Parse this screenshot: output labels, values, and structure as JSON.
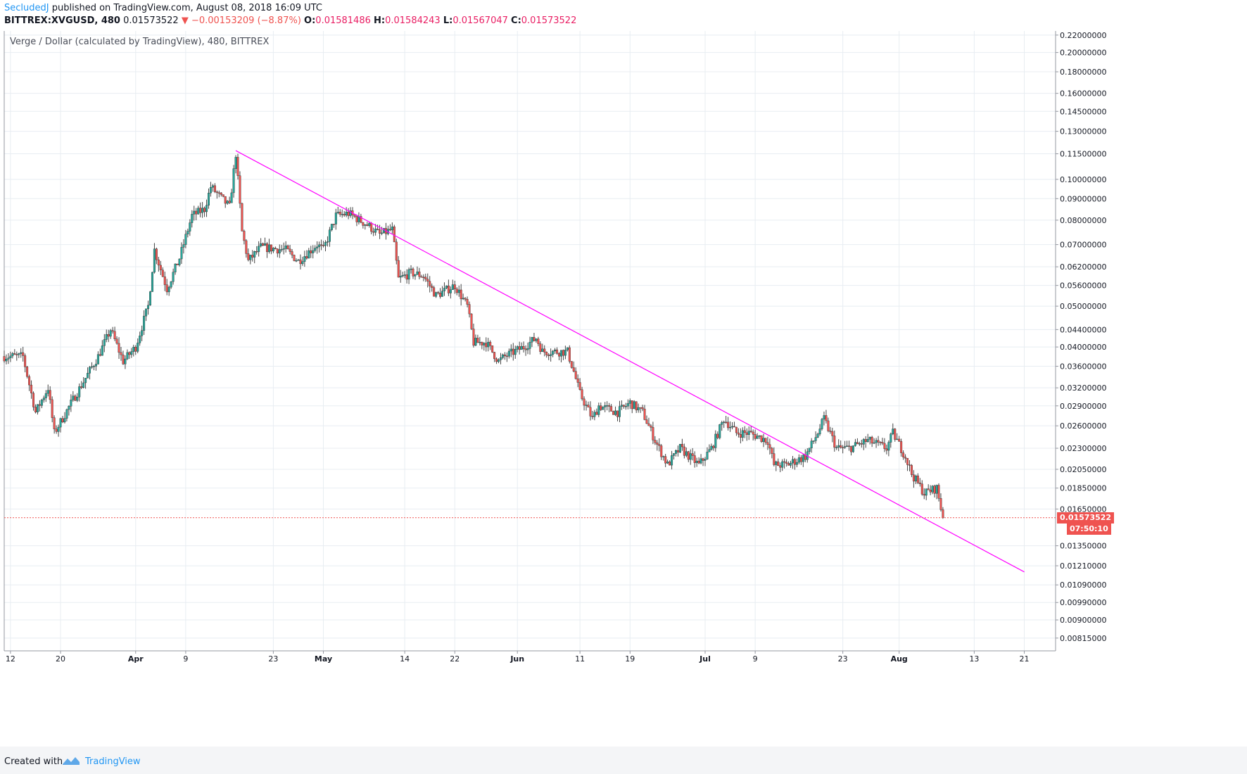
{
  "header": {
    "author": "SecludedJ",
    "publish_text": " published on TradingView.com, August 08, 2018 16:09 UTC",
    "symbol": "BITTREX:XVGUSD, 480",
    "last_price": "0.01573522",
    "change": "−0.00153209 (−8.87%)",
    "open_label": "O:",
    "open": "0.01581486",
    "high_label": "H:",
    "high": "0.01584243",
    "low_label": "L:",
    "low": "0.01567047",
    "close_label": "C:",
    "close": "0.01573522"
  },
  "chart_title": "Verge / Dollar (calculated by TradingView), 480, BITTREX",
  "price_tag": "0.01573522",
  "countdown_tag": "07:50:10",
  "footer": {
    "created": "Created with",
    "brand": "TradingView"
  },
  "colors": {
    "up": "#26a69a",
    "down": "#ef5350",
    "trendline": "#ff00ff",
    "grid": "#e8edf2",
    "price_line": "#ef5350",
    "brand": "#2196f3"
  },
  "chart_data": {
    "type": "candlestick",
    "y_scale": "log",
    "ylim": [
      0.0076,
      0.225
    ],
    "y_ticks": [
      "0.22000000",
      "0.20000000",
      "0.18000000",
      "0.16000000",
      "0.14500000",
      "0.13000000",
      "0.11500000",
      "0.10000000",
      "0.09000000",
      "0.08000000",
      "0.07000000",
      "0.06200000",
      "0.05600000",
      "0.05000000",
      "0.04400000",
      "0.04000000",
      "0.03600000",
      "0.03200000",
      "0.02900000",
      "0.02600000",
      "0.02300000",
      "0.02050000",
      "0.01850000",
      "0.01650000",
      "0.01350000",
      "0.01210000",
      "0.01090000",
      "0.00990000",
      "0.00900000",
      "0.00815000"
    ],
    "x_ticks": [
      "12",
      "20",
      "Apr",
      "9",
      "23",
      "May",
      "14",
      "22",
      "Jun",
      "11",
      "19",
      "Jul",
      "9",
      "23",
      "Aug",
      "13",
      "21"
    ],
    "x_tick_dates": [
      "2018-03-12",
      "2018-03-20",
      "2018-04-01",
      "2018-04-09",
      "2018-04-23",
      "2018-05-01",
      "2018-05-14",
      "2018-05-22",
      "2018-06-01",
      "2018-06-11",
      "2018-06-19",
      "2018-07-01",
      "2018-07-09",
      "2018-07-23",
      "2018-08-01",
      "2018-08-13",
      "2018-08-21"
    ],
    "x_range": [
      "2018-03-11",
      "2018-08-26"
    ],
    "close_keypoints": [
      [
        "2018-03-11",
        0.038
      ],
      [
        "2018-03-14",
        0.038
      ],
      [
        "2018-03-16",
        0.028
      ],
      [
        "2018-03-18",
        0.032
      ],
      [
        "2018-03-19",
        0.025
      ],
      [
        "2018-03-22",
        0.03
      ],
      [
        "2018-03-26",
        0.038
      ],
      [
        "2018-03-28",
        0.044
      ],
      [
        "2018-03-30",
        0.037
      ],
      [
        "2018-04-01",
        0.04
      ],
      [
        "2018-04-03",
        0.05
      ],
      [
        "2018-04-04",
        0.068
      ],
      [
        "2018-04-06",
        0.055
      ],
      [
        "2018-04-08",
        0.065
      ],
      [
        "2018-04-10",
        0.082
      ],
      [
        "2018-04-12",
        0.085
      ],
      [
        "2018-04-13",
        0.096
      ],
      [
        "2018-04-16",
        0.086
      ],
      [
        "2018-04-17",
        0.115
      ],
      [
        "2018-04-18",
        0.075
      ],
      [
        "2018-04-19",
        0.064
      ],
      [
        "2018-04-21",
        0.069
      ],
      [
        "2018-04-25",
        0.068
      ],
      [
        "2018-04-27",
        0.064
      ],
      [
        "2018-04-30",
        0.07
      ],
      [
        "2018-05-01",
        0.068
      ],
      [
        "2018-05-03",
        0.082
      ],
      [
        "2018-05-05",
        0.083
      ],
      [
        "2018-05-08",
        0.078
      ],
      [
        "2018-05-10",
        0.074
      ],
      [
        "2018-05-12",
        0.076
      ],
      [
        "2018-05-13",
        0.058
      ],
      [
        "2018-05-15",
        0.06
      ],
      [
        "2018-05-17",
        0.059
      ],
      [
        "2018-05-19",
        0.053
      ],
      [
        "2018-05-22",
        0.056
      ],
      [
        "2018-05-24",
        0.05
      ],
      [
        "2018-05-25",
        0.041
      ],
      [
        "2018-05-27",
        0.041
      ],
      [
        "2018-05-29",
        0.037
      ],
      [
        "2018-05-30",
        0.038
      ],
      [
        "2018-06-02",
        0.04
      ],
      [
        "2018-06-04",
        0.042
      ],
      [
        "2018-06-05",
        0.039
      ],
      [
        "2018-06-09",
        0.039
      ],
      [
        "2018-06-10",
        0.035
      ],
      [
        "2018-06-11",
        0.031
      ],
      [
        "2018-06-13",
        0.027
      ],
      [
        "2018-06-14",
        0.029
      ],
      [
        "2018-06-17",
        0.028
      ],
      [
        "2018-06-19",
        0.0295
      ],
      [
        "2018-06-21",
        0.028
      ],
      [
        "2018-06-23",
        0.024
      ],
      [
        "2018-06-25",
        0.021
      ],
      [
        "2018-06-27",
        0.023
      ],
      [
        "2018-06-30",
        0.021
      ],
      [
        "2018-07-02",
        0.023
      ],
      [
        "2018-07-04",
        0.027
      ],
      [
        "2018-07-06",
        0.025
      ],
      [
        "2018-07-08",
        0.025
      ],
      [
        "2018-07-11",
        0.024
      ],
      [
        "2018-07-12",
        0.021
      ],
      [
        "2018-07-14",
        0.021
      ],
      [
        "2018-07-17",
        0.022
      ],
      [
        "2018-07-19",
        0.025
      ],
      [
        "2018-07-20",
        0.027
      ],
      [
        "2018-07-22",
        0.023
      ],
      [
        "2018-07-24",
        0.023
      ],
      [
        "2018-07-27",
        0.024
      ],
      [
        "2018-07-30",
        0.023
      ],
      [
        "2018-07-31",
        0.025
      ],
      [
        "2018-08-02",
        0.022
      ],
      [
        "2018-08-03",
        0.02
      ],
      [
        "2018-08-05",
        0.018
      ],
      [
        "2018-08-07",
        0.0185
      ],
      [
        "2018-08-08",
        0.01573522
      ]
    ],
    "trendline": [
      [
        "2018-04-17",
        0.117
      ],
      [
        "2018-08-21",
        0.0117
      ]
    ],
    "current_price": 0.01573522,
    "candle_interval": "480",
    "grid": true
  }
}
